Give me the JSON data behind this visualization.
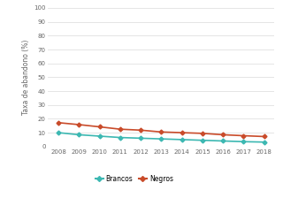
{
  "years": [
    2008,
    2009,
    2010,
    2011,
    2012,
    2013,
    2014,
    2015,
    2016,
    2017,
    2018
  ],
  "brancos": [
    10.0,
    8.5,
    7.5,
    6.5,
    6.0,
    5.5,
    5.0,
    4.5,
    4.0,
    3.5,
    3.2
  ],
  "negros": [
    17.2,
    15.8,
    14.2,
    12.5,
    11.8,
    10.5,
    10.0,
    9.5,
    8.5,
    7.8,
    7.2
  ],
  "brancos_color": "#3cb8b2",
  "negros_color": "#c94b2a",
  "ylabel": "Taxa de abandono (%)",
  "ylim": [
    0,
    100
  ],
  "yticks": [
    0,
    10,
    20,
    30,
    40,
    50,
    60,
    70,
    80,
    90,
    100
  ],
  "background_color": "#ffffff",
  "legend_brancos": "Brancos",
  "legend_negros": "Negros",
  "marker": "D",
  "marker_size": 2.5,
  "linewidth": 1.2
}
